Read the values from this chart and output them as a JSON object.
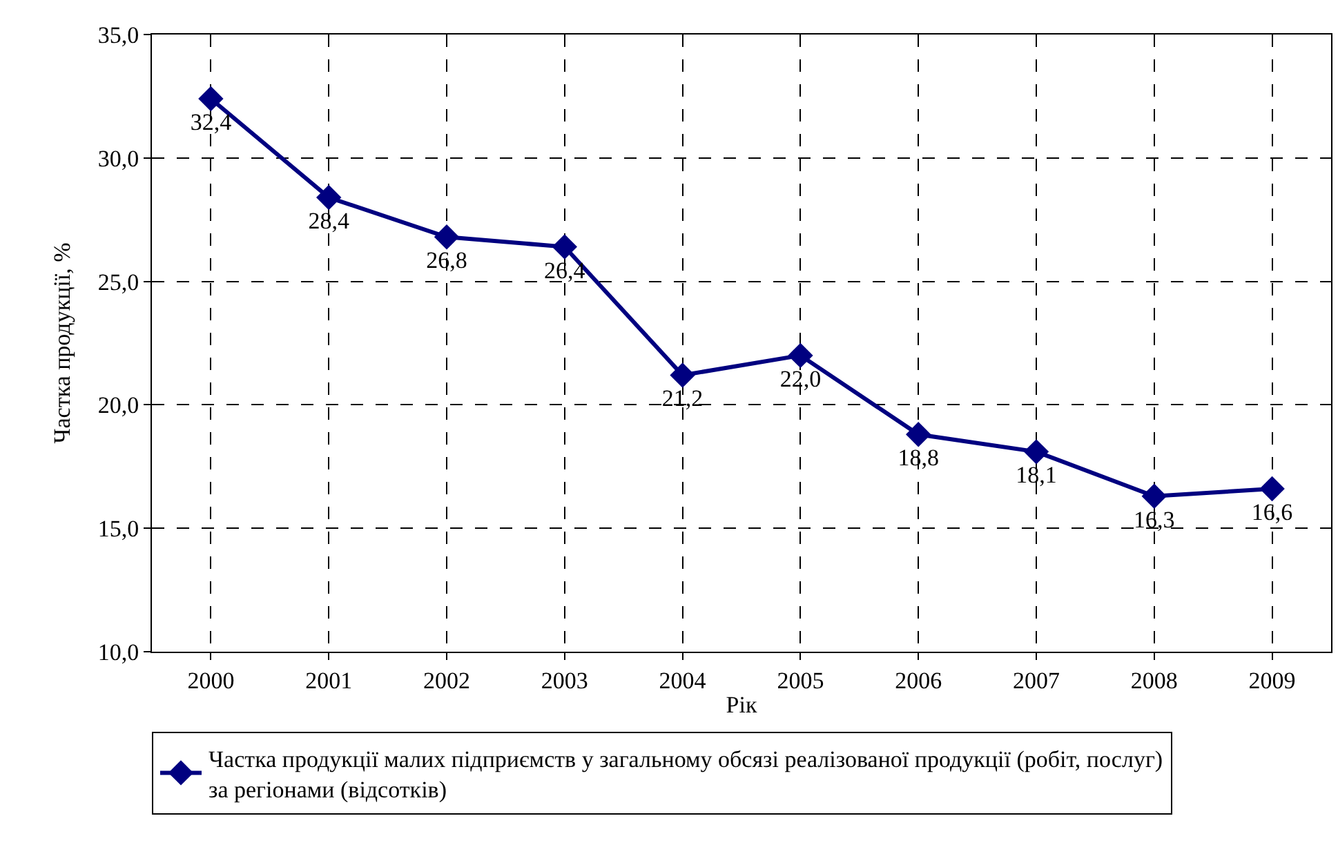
{
  "chart_data": {
    "type": "line",
    "xlabel": "Рік",
    "ylabel": "Частка продукції, %",
    "categories": [
      "2000",
      "2001",
      "2002",
      "2003",
      "2004",
      "2005",
      "2006",
      "2007",
      "2008",
      "2009"
    ],
    "series": [
      {
        "name": "Частка продукції малих підприємств у загальному обсязі реалізованої продукції (робіт, послуг) за регіонами (відсотків)",
        "color": "#000080",
        "values": [
          32.4,
          28.4,
          26.8,
          26.4,
          21.2,
          22.0,
          18.8,
          18.1,
          16.3,
          16.6
        ],
        "value_labels": [
          "32,4",
          "28,4",
          "26,8",
          "26,4",
          "21,2",
          "22,0",
          "18,8",
          "18,1",
          "16,3",
          "16,6"
        ]
      }
    ],
    "ylim": [
      10,
      35
    ],
    "yticks": [
      {
        "value": 10,
        "label": "10,0"
      },
      {
        "value": 15,
        "label": "15,0"
      },
      {
        "value": 20,
        "label": "20,0"
      },
      {
        "value": 25,
        "label": "25,0"
      },
      {
        "value": 30,
        "label": "30,0"
      },
      {
        "value": 35,
        "label": "35,0"
      }
    ],
    "grid": true,
    "legend": "bottom",
    "marker": "diamond",
    "line_style": "solid"
  }
}
